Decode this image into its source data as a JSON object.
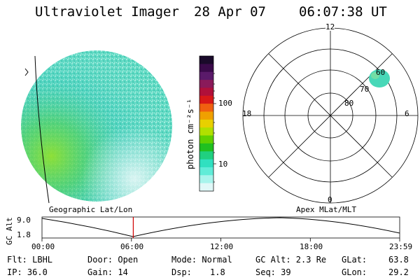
{
  "header": {
    "instrument": "Ultraviolet Imager",
    "date": "28 Apr 07",
    "time": "06:07:38 UT"
  },
  "image_panel": {
    "projection_label": "Geographic Lat/Lon"
  },
  "colorbar": {
    "unit_label": "photon cm⁻²s⁻¹",
    "ticks": [
      "100",
      "10"
    ],
    "colors": [
      "#1a0a2a",
      "#3a0a4a",
      "#5a1a6a",
      "#8a1a5a",
      "#b0103a",
      "#d81818",
      "#f06010",
      "#f0a000",
      "#e8d000",
      "#b0e000",
      "#60d000",
      "#20c020",
      "#20d080",
      "#30e0c0",
      "#60ecd8",
      "#a8f4ec",
      "#e0f8f8"
    ]
  },
  "polar_plot": {
    "label": "Apex MLat/MLT",
    "mlt_labels": [
      "12",
      "18",
      "6",
      "0"
    ],
    "lat_labels": [
      "60",
      "70",
      "80"
    ]
  },
  "altitude_plot": {
    "y_label": "GC Alt",
    "y_ticks": [
      "9.0",
      "1.8"
    ],
    "x_ticks": [
      "00:00",
      "06:00",
      "12:00",
      "18:00",
      "23:59"
    ],
    "current_time_fraction": 0.2552
  },
  "footer": {
    "flt": "Flt: LBHL",
    "ip": "IP: 36.0",
    "door": "Door: Open",
    "gain": "Gain: 14",
    "mode": "Mode: Normal",
    "dsp_label": "Dsp:",
    "dsp_value": "1.8",
    "gc_alt": "GC Alt: 2.3 Re",
    "seq": "Seq: 39",
    "glat_label": "GLat:",
    "glat_value": "63.8",
    "glon_label": "GLon:",
    "glon_value": "29.2"
  }
}
